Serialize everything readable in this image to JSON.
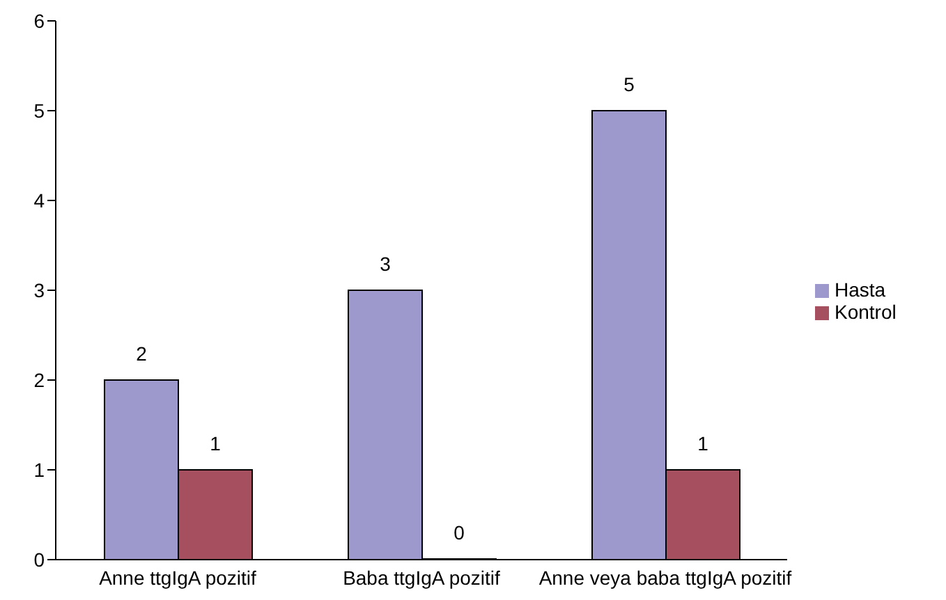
{
  "chart_data": {
    "type": "bar",
    "categories": [
      "Anne ttgIgA pozitif",
      "Baba ttgIgA pozitif",
      "Anne veya baba ttgIgA pozitif"
    ],
    "series": [
      {
        "name": "Hasta",
        "color": "#9d99cc",
        "values": [
          2,
          3,
          5
        ]
      },
      {
        "name": "Kontrol",
        "color": "#a64f5f",
        "values": [
          1,
          0,
          1
        ]
      }
    ],
    "ylim": [
      0,
      6
    ],
    "yticks": [
      0,
      1,
      2,
      3,
      4,
      5,
      6
    ],
    "grid": false,
    "legend": "right",
    "data_labels": true
  }
}
